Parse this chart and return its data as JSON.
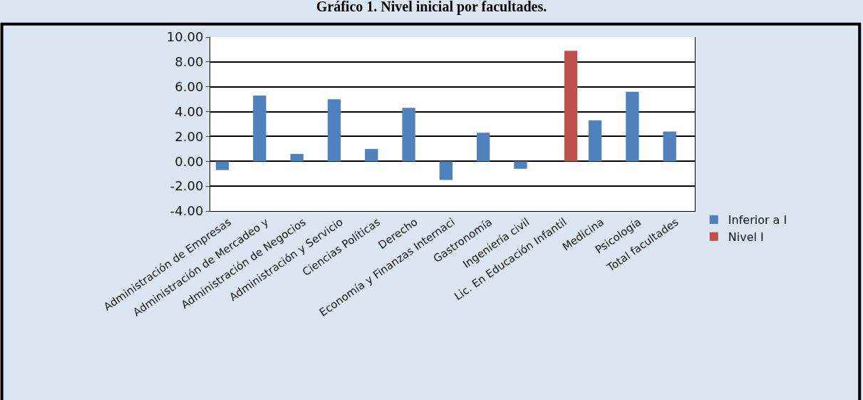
{
  "chart_data": {
    "type": "bar",
    "title": "Gráfico 1. Nivel inicial por facultades.",
    "categories": [
      "Administración de Empresas",
      "Administración de Mercadeo y",
      "Administración de Negocios",
      "Administración y Servicio",
      "Ciencias Políticas",
      "Derecho",
      "Economía y Finanzas Internaci",
      "Gastronomía",
      "Ingeniería civil",
      "Lic. En Educación Infantil",
      "Medicina",
      "Psicología",
      "Total facultades"
    ],
    "series": [
      {
        "name": "Inferior a I",
        "color": "#4f81bd",
        "values": [
          -0.7,
          5.3,
          0.6,
          5.0,
          1.0,
          4.3,
          -1.5,
          2.3,
          -0.6,
          null,
          3.3,
          5.6,
          2.4
        ]
      },
      {
        "name": "Nivel I",
        "color": "#c0504d",
        "values": [
          null,
          null,
          null,
          null,
          null,
          null,
          null,
          null,
          null,
          8.9,
          null,
          null,
          null
        ]
      }
    ],
    "ylim": [
      -4,
      10
    ],
    "yticks": [
      {
        "value": -4,
        "label": "-4.00"
      },
      {
        "value": -2,
        "label": "-2.00"
      },
      {
        "value": 0,
        "label": "0.00"
      },
      {
        "value": 2,
        "label": "2.00"
      },
      {
        "value": 4,
        "label": "4.00"
      },
      {
        "value": 6,
        "label": "6.00"
      },
      {
        "value": 8,
        "label": "8.00"
      },
      {
        "value": 10,
        "label": "10.00"
      }
    ],
    "grid": "y",
    "legend": "right"
  }
}
